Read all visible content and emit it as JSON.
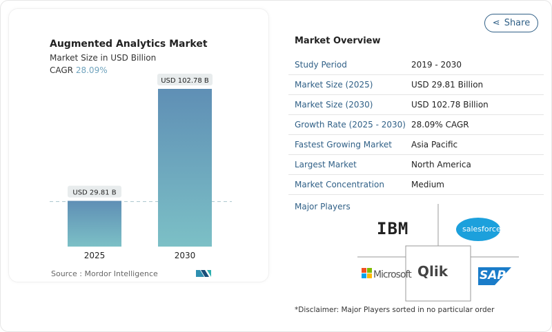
{
  "chart": {
    "title": "Augmented Analytics Market",
    "subtitle": "Market Size in USD Billion",
    "cagr_label": "CAGR",
    "cagr_value": "28.09%",
    "source": "Source :  Mordor Intelligence"
  },
  "chart_data": {
    "type": "bar",
    "title": "Augmented Analytics Market",
    "subtitle": "Market Size in USD Billion",
    "categories": [
      "2025",
      "2030"
    ],
    "values": [
      29.81,
      102.78
    ],
    "data_labels": [
      "USD 29.81 B",
      "USD 102.78 B"
    ],
    "ylim": [
      0,
      110
    ],
    "grid": false,
    "colors": {
      "bar_top": "#5f8fb5",
      "bar_bottom": "#7cc0c6"
    }
  },
  "share": {
    "label": "Share",
    "icon": "share-icon"
  },
  "overview": {
    "title": "Market Overview",
    "rows": [
      {
        "label": "Study Period",
        "value": "2019 - 2030"
      },
      {
        "label": "Market Size (2025)",
        "value": "USD 29.81 Billion"
      },
      {
        "label": "Market Size (2030)",
        "value": "USD 102.78 Billion"
      },
      {
        "label": "Growth Rate (2025 - 2030)",
        "value": "28.09% CAGR"
      },
      {
        "label": "Fastest Growing Market",
        "value": "Asia Pacific"
      },
      {
        "label": "Largest Market",
        "value": "North America"
      },
      {
        "label": "Market Concentration",
        "value": "Medium"
      }
    ],
    "major_players_label": "Major Players",
    "players": [
      "IBM",
      "salesforce",
      "Microsoft",
      "Qlik",
      "SAP"
    ],
    "disclaimer": "*Disclaimer: Major Players sorted in no particular order"
  },
  "colors": {
    "accent": "#2f5f86"
  }
}
